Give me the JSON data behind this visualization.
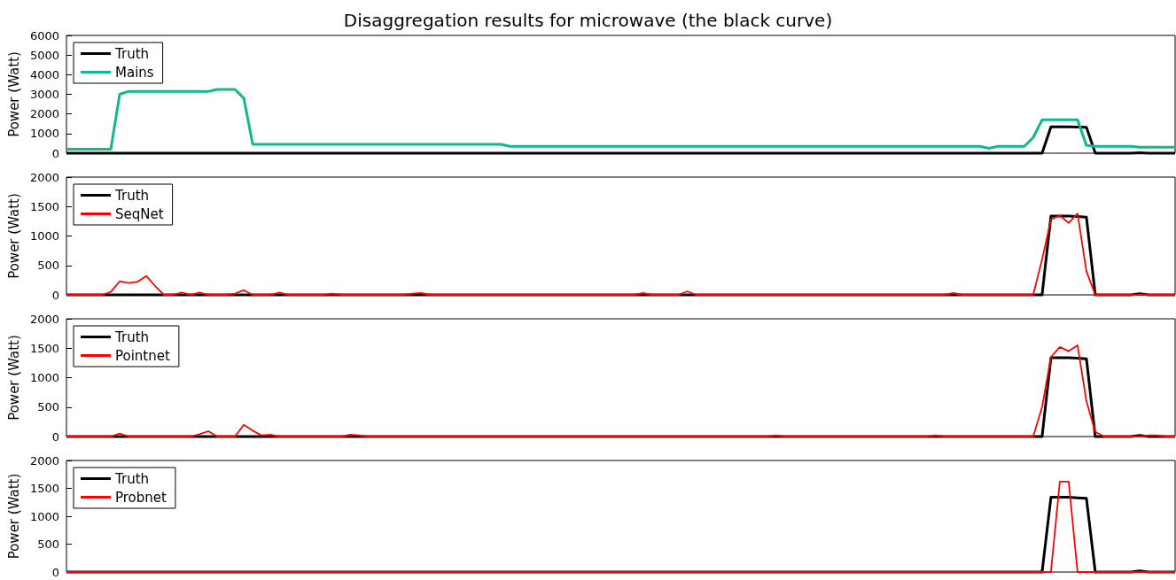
{
  "chart_data": [
    {
      "type": "line",
      "title": "Disaggregation results for microwave (the black curve)",
      "ylabel": "Power (Watt)",
      "ylim": [
        0,
        6000
      ],
      "yticks": [
        0,
        1000,
        2000,
        3000,
        4000,
        5000,
        6000
      ],
      "grid": false,
      "legend": "top left",
      "tick_labels": "y",
      "marker": "none",
      "line_style": "solid",
      "categories": [
        null,
        null,
        null,
        null,
        null,
        null,
        null,
        null,
        null,
        null,
        null,
        null,
        null,
        null,
        null,
        null,
        null,
        null,
        null,
        null,
        null,
        null,
        null,
        null,
        null,
        null,
        null,
        null,
        null,
        null,
        null,
        null,
        null,
        null,
        null,
        null,
        null,
        null,
        null,
        null,
        null,
        null,
        null,
        null,
        null,
        null,
        null,
        null,
        null,
        null,
        null,
        null,
        null,
        null,
        null,
        null,
        null,
        null,
        null,
        null,
        null,
        null,
        null,
        null,
        null,
        null,
        null,
        null,
        null,
        null,
        null,
        null,
        null,
        null,
        null,
        null,
        null,
        null,
        null,
        null,
        null,
        null,
        null,
        null,
        null,
        null,
        null,
        null,
        null,
        null,
        null,
        null,
        null,
        null,
        null,
        null,
        null,
        null,
        null,
        null,
        null,
        null,
        null,
        null,
        null,
        null,
        null,
        null,
        null,
        null,
        null,
        null,
        null,
        null,
        null,
        null,
        null,
        null,
        null,
        null,
        null,
        null,
        null,
        null,
        null,
        null
      ],
      "series": [
        {
          "name": "Truth",
          "color": "#000000",
          "values": [
            0,
            0,
            0,
            0,
            0,
            0,
            0,
            0,
            0,
            0,
            0,
            0,
            0,
            0,
            0,
            0,
            0,
            0,
            0,
            0,
            0,
            0,
            0,
            0,
            0,
            0,
            0,
            0,
            0,
            0,
            0,
            0,
            0,
            0,
            0,
            0,
            0,
            0,
            0,
            0,
            0,
            0,
            0,
            0,
            0,
            0,
            0,
            0,
            0,
            0,
            0,
            0,
            0,
            0,
            0,
            0,
            0,
            0,
            0,
            0,
            0,
            0,
            0,
            0,
            0,
            0,
            0,
            0,
            0,
            0,
            0,
            0,
            0,
            0,
            0,
            0,
            0,
            0,
            0,
            0,
            0,
            0,
            0,
            0,
            0,
            0,
            0,
            0,
            0,
            0,
            0,
            0,
            0,
            0,
            0,
            0,
            0,
            0,
            0,
            0,
            0,
            0,
            0,
            0,
            0,
            0,
            0,
            0,
            0,
            0,
            0,
            1340,
            1340,
            1340,
            1330,
            1320,
            0,
            0,
            0,
            0,
            0,
            20,
            0,
            0,
            0,
            0
          ]
        },
        {
          "name": "Mains",
          "color": "#10b88c",
          "values": [
            200,
            200,
            200,
            200,
            200,
            200,
            3000,
            3150,
            3150,
            3150,
            3150,
            3150,
            3150,
            3150,
            3150,
            3150,
            3150,
            3250,
            3250,
            3250,
            2800,
            450,
            450,
            450,
            450,
            450,
            450,
            450,
            450,
            450,
            450,
            450,
            450,
            450,
            450,
            450,
            450,
            450,
            450,
            450,
            450,
            450,
            450,
            450,
            450,
            450,
            450,
            450,
            450,
            450,
            350,
            350,
            350,
            350,
            350,
            350,
            350,
            350,
            350,
            350,
            350,
            350,
            350,
            350,
            350,
            350,
            350,
            350,
            350,
            350,
            350,
            350,
            350,
            350,
            350,
            350,
            350,
            350,
            350,
            350,
            350,
            350,
            350,
            350,
            350,
            350,
            350,
            350,
            350,
            350,
            350,
            350,
            350,
            350,
            350,
            350,
            350,
            350,
            350,
            350,
            350,
            350,
            350,
            350,
            250,
            350,
            350,
            350,
            350,
            800,
            1700,
            1700,
            1700,
            1700,
            1700,
            400,
            350,
            350,
            350,
            350,
            350,
            300,
            300,
            300,
            300,
            300
          ]
        }
      ]
    },
    {
      "type": "line",
      "ylabel": "Power (Watt)",
      "ylim": [
        0,
        2000
      ],
      "yticks": [
        0,
        500,
        1000,
        1500,
        2000
      ],
      "grid": false,
      "legend": "top left",
      "tick_labels": "y",
      "marker": "none",
      "line_style": "solid",
      "categories": [
        null,
        null,
        null,
        null,
        null,
        null,
        null,
        null,
        null,
        null,
        null,
        null,
        null,
        null,
        null,
        null,
        null,
        null,
        null,
        null,
        null,
        null,
        null,
        null,
        null,
        null,
        null,
        null,
        null,
        null,
        null,
        null,
        null,
        null,
        null,
        null,
        null,
        null,
        null,
        null,
        null,
        null,
        null,
        null,
        null,
        null,
        null,
        null,
        null,
        null,
        null,
        null,
        null,
        null,
        null,
        null,
        null,
        null,
        null,
        null,
        null,
        null,
        null,
        null,
        null,
        null,
        null,
        null,
        null,
        null,
        null,
        null,
        null,
        null,
        null,
        null,
        null,
        null,
        null,
        null,
        null,
        null,
        null,
        null,
        null,
        null,
        null,
        null,
        null,
        null,
        null,
        null,
        null,
        null,
        null,
        null,
        null,
        null,
        null,
        null,
        null,
        null,
        null,
        null,
        null,
        null,
        null,
        null,
        null,
        null,
        null,
        null,
        null,
        null,
        null,
        null,
        null,
        null,
        null,
        null,
        null,
        null,
        null,
        null,
        null,
        null
      ],
      "series": [
        {
          "name": "Truth",
          "color": "#000000",
          "values": [
            0,
            0,
            0,
            0,
            0,
            0,
            0,
            0,
            0,
            0,
            0,
            0,
            0,
            0,
            0,
            0,
            0,
            0,
            0,
            0,
            0,
            0,
            0,
            0,
            0,
            0,
            0,
            0,
            0,
            0,
            0,
            0,
            0,
            0,
            0,
            0,
            0,
            0,
            0,
            0,
            0,
            0,
            0,
            0,
            0,
            0,
            0,
            0,
            0,
            0,
            0,
            0,
            0,
            0,
            0,
            0,
            0,
            0,
            0,
            0,
            0,
            0,
            0,
            0,
            0,
            0,
            0,
            0,
            0,
            0,
            0,
            0,
            0,
            0,
            0,
            0,
            0,
            0,
            0,
            0,
            0,
            0,
            0,
            0,
            0,
            0,
            0,
            0,
            0,
            0,
            0,
            0,
            0,
            0,
            0,
            0,
            0,
            0,
            0,
            0,
            0,
            0,
            0,
            0,
            0,
            0,
            0,
            0,
            0,
            0,
            0,
            1340,
            1340,
            1340,
            1330,
            1320,
            0,
            0,
            0,
            0,
            0,
            20,
            0,
            0,
            0,
            0
          ]
        },
        {
          "name": "SeqNet",
          "color": "#ff0000",
          "values": [
            0,
            0,
            0,
            0,
            0,
            50,
            230,
            200,
            220,
            320,
            150,
            0,
            0,
            40,
            0,
            40,
            0,
            0,
            0,
            20,
            80,
            0,
            0,
            0,
            40,
            0,
            0,
            0,
            0,
            0,
            20,
            0,
            0,
            0,
            0,
            0,
            0,
            0,
            0,
            20,
            30,
            0,
            0,
            0,
            0,
            0,
            0,
            0,
            0,
            0,
            0,
            0,
            0,
            0,
            0,
            0,
            0,
            0,
            0,
            0,
            0,
            0,
            0,
            0,
            0,
            30,
            0,
            0,
            0,
            0,
            60,
            0,
            0,
            0,
            0,
            0,
            0,
            0,
            0,
            0,
            0,
            0,
            0,
            0,
            0,
            0,
            0,
            0,
            0,
            0,
            0,
            0,
            0,
            0,
            0,
            0,
            0,
            0,
            0,
            0,
            30,
            0,
            0,
            0,
            0,
            0,
            0,
            0,
            0,
            0,
            600,
            1280,
            1350,
            1220,
            1380,
            400,
            0,
            0,
            0,
            0,
            0,
            0,
            0,
            0,
            0,
            0
          ]
        }
      ]
    },
    {
      "type": "line",
      "ylabel": "Power (Watt)",
      "ylim": [
        0,
        2000
      ],
      "yticks": [
        0,
        500,
        1000,
        1500,
        2000
      ],
      "grid": false,
      "legend": "top left",
      "tick_labels": "y",
      "marker": "none",
      "line_style": "solid",
      "categories": [
        null,
        null,
        null,
        null,
        null,
        null,
        null,
        null,
        null,
        null,
        null,
        null,
        null,
        null,
        null,
        null,
        null,
        null,
        null,
        null,
        null,
        null,
        null,
        null,
        null,
        null,
        null,
        null,
        null,
        null,
        null,
        null,
        null,
        null,
        null,
        null,
        null,
        null,
        null,
        null,
        null,
        null,
        null,
        null,
        null,
        null,
        null,
        null,
        null,
        null,
        null,
        null,
        null,
        null,
        null,
        null,
        null,
        null,
        null,
        null,
        null,
        null,
        null,
        null,
        null,
        null,
        null,
        null,
        null,
        null,
        null,
        null,
        null,
        null,
        null,
        null,
        null,
        null,
        null,
        null,
        null,
        null,
        null,
        null,
        null,
        null,
        null,
        null,
        null,
        null,
        null,
        null,
        null,
        null,
        null,
        null,
        null,
        null,
        null,
        null,
        null,
        null,
        null,
        null,
        null,
        null,
        null,
        null,
        null,
        null,
        null,
        null,
        null,
        null,
        null,
        null,
        null,
        null,
        null,
        null,
        null,
        null,
        null,
        null,
        null,
        null
      ],
      "series": [
        {
          "name": "Truth",
          "color": "#000000",
          "values": [
            0,
            0,
            0,
            0,
            0,
            0,
            0,
            0,
            0,
            0,
            0,
            0,
            0,
            0,
            0,
            0,
            0,
            0,
            0,
            0,
            0,
            0,
            0,
            0,
            0,
            0,
            0,
            0,
            0,
            0,
            0,
            0,
            0,
            0,
            0,
            0,
            0,
            0,
            0,
            0,
            0,
            0,
            0,
            0,
            0,
            0,
            0,
            0,
            0,
            0,
            0,
            0,
            0,
            0,
            0,
            0,
            0,
            0,
            0,
            0,
            0,
            0,
            0,
            0,
            0,
            0,
            0,
            0,
            0,
            0,
            0,
            0,
            0,
            0,
            0,
            0,
            0,
            0,
            0,
            0,
            0,
            0,
            0,
            0,
            0,
            0,
            0,
            0,
            0,
            0,
            0,
            0,
            0,
            0,
            0,
            0,
            0,
            0,
            0,
            0,
            0,
            0,
            0,
            0,
            0,
            0,
            0,
            0,
            0,
            0,
            0,
            1340,
            1340,
            1340,
            1330,
            1320,
            0,
            0,
            0,
            0,
            0,
            20,
            0,
            0,
            0,
            0
          ]
        },
        {
          "name": "Pointnet",
          "color": "#ff0000",
          "values": [
            0,
            0,
            0,
            0,
            0,
            0,
            50,
            0,
            0,
            0,
            0,
            0,
            0,
            0,
            0,
            40,
            90,
            0,
            0,
            0,
            200,
            100,
            20,
            30,
            0,
            0,
            0,
            0,
            0,
            0,
            0,
            0,
            30,
            20,
            0,
            0,
            0,
            0,
            0,
            0,
            0,
            0,
            0,
            0,
            0,
            0,
            0,
            0,
            0,
            0,
            0,
            0,
            0,
            0,
            0,
            0,
            0,
            0,
            0,
            0,
            0,
            0,
            0,
            0,
            0,
            0,
            0,
            0,
            0,
            0,
            0,
            0,
            0,
            0,
            0,
            0,
            0,
            0,
            0,
            0,
            20,
            0,
            0,
            0,
            0,
            0,
            0,
            0,
            0,
            0,
            0,
            0,
            0,
            0,
            0,
            0,
            0,
            0,
            20,
            0,
            0,
            0,
            0,
            0,
            0,
            0,
            0,
            0,
            0,
            0,
            500,
            1350,
            1520,
            1450,
            1550,
            600,
            80,
            0,
            0,
            0,
            0,
            0,
            20,
            20,
            0,
            0
          ]
        }
      ]
    },
    {
      "type": "line",
      "ylabel": "Power (Watt)",
      "ylim": [
        0,
        2000
      ],
      "yticks": [
        0,
        500,
        1000,
        1500,
        2000
      ],
      "grid": false,
      "legend": "top left",
      "tick_labels": "y",
      "marker": "none",
      "line_style": "solid",
      "categories": [
        null,
        null,
        null,
        null,
        null,
        null,
        null,
        null,
        null,
        null,
        null,
        null,
        null,
        null,
        null,
        null,
        null,
        null,
        null,
        null,
        null,
        null,
        null,
        null,
        null,
        null,
        null,
        null,
        null,
        null,
        null,
        null,
        null,
        null,
        null,
        null,
        null,
        null,
        null,
        null,
        null,
        null,
        null,
        null,
        null,
        null,
        null,
        null,
        null,
        null,
        null,
        null,
        null,
        null,
        null,
        null,
        null,
        null,
        null,
        null,
        null,
        null,
        null,
        null,
        null,
        null,
        null,
        null,
        null,
        null,
        null,
        null,
        null,
        null,
        null,
        null,
        null,
        null,
        null,
        null,
        null,
        null,
        null,
        null,
        null,
        null,
        null,
        null,
        null,
        null,
        null,
        null,
        null,
        null,
        null,
        null,
        null,
        null,
        null,
        null,
        null,
        null,
        null,
        null,
        null,
        null,
        null,
        null,
        null,
        null,
        null,
        null,
        null,
        null,
        null,
        null,
        null,
        null,
        null,
        null,
        null,
        null,
        null,
        null,
        null,
        null
      ],
      "series": [
        {
          "name": "Truth",
          "color": "#000000",
          "values": [
            0,
            0,
            0,
            0,
            0,
            0,
            0,
            0,
            0,
            0,
            0,
            0,
            0,
            0,
            0,
            0,
            0,
            0,
            0,
            0,
            0,
            0,
            0,
            0,
            0,
            0,
            0,
            0,
            0,
            0,
            0,
            0,
            0,
            0,
            0,
            0,
            0,
            0,
            0,
            0,
            0,
            0,
            0,
            0,
            0,
            0,
            0,
            0,
            0,
            0,
            0,
            0,
            0,
            0,
            0,
            0,
            0,
            0,
            0,
            0,
            0,
            0,
            0,
            0,
            0,
            0,
            0,
            0,
            0,
            0,
            0,
            0,
            0,
            0,
            0,
            0,
            0,
            0,
            0,
            0,
            0,
            0,
            0,
            0,
            0,
            0,
            0,
            0,
            0,
            0,
            0,
            0,
            0,
            0,
            0,
            0,
            0,
            0,
            0,
            0,
            0,
            0,
            0,
            0,
            0,
            0,
            0,
            0,
            0,
            0,
            0,
            1340,
            1340,
            1340,
            1330,
            1320,
            0,
            0,
            0,
            0,
            0,
            20,
            0,
            0,
            0,
            0
          ]
        },
        {
          "name": "Probnet",
          "color": "#ff0000",
          "values": [
            0,
            0,
            0,
            0,
            0,
            0,
            0,
            0,
            0,
            0,
            0,
            0,
            0,
            0,
            0,
            0,
            0,
            0,
            0,
            0,
            0,
            0,
            0,
            0,
            0,
            0,
            0,
            0,
            0,
            0,
            0,
            0,
            0,
            0,
            0,
            0,
            0,
            0,
            0,
            0,
            0,
            0,
            0,
            0,
            0,
            0,
            0,
            0,
            0,
            0,
            0,
            0,
            0,
            0,
            0,
            0,
            0,
            0,
            0,
            0,
            0,
            0,
            0,
            0,
            0,
            0,
            0,
            0,
            0,
            0,
            0,
            0,
            0,
            0,
            0,
            0,
            0,
            0,
            0,
            0,
            0,
            0,
            0,
            0,
            0,
            0,
            0,
            0,
            0,
            0,
            0,
            0,
            0,
            0,
            0,
            0,
            0,
            0,
            0,
            0,
            0,
            0,
            0,
            0,
            0,
            0,
            0,
            0,
            0,
            0,
            0,
            0,
            1620,
            1620,
            0,
            0,
            0,
            0,
            0,
            0,
            0,
            0,
            0,
            0,
            0,
            0
          ]
        }
      ]
    }
  ]
}
